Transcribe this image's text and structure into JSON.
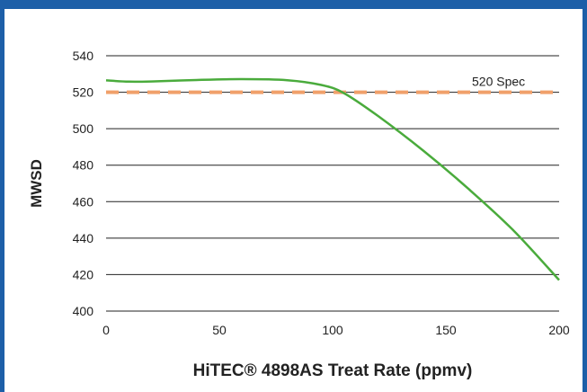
{
  "chart_data": {
    "type": "line",
    "xlabel": "HiTEC® 4898AS Treat Rate (ppmv)",
    "ylabel": "MWSD",
    "xlim": [
      0,
      200
    ],
    "ylim": [
      400,
      540
    ],
    "x_ticks": [
      0,
      50,
      100,
      150,
      200
    ],
    "y_ticks": [
      400,
      420,
      440,
      460,
      480,
      500,
      520,
      540
    ],
    "grid": "horizontal",
    "series": [
      {
        "color": "#4aab3c",
        "x": [
          0,
          10,
          20,
          40,
          60,
          80,
          95,
          105,
          120,
          140,
          160,
          180,
          200
        ],
        "y": [
          526.5,
          525.8,
          525.9,
          526.7,
          527.2,
          526.6,
          524.0,
          519.5,
          507.0,
          488.0,
          467.0,
          444.0,
          417.0
        ]
      }
    ],
    "reference_line": {
      "label": "520 Spec",
      "value": 520,
      "color": "#f0a06a",
      "style": "dashed"
    }
  },
  "colors": {
    "frame": "#1d5fa8",
    "grid": "#222222"
  }
}
